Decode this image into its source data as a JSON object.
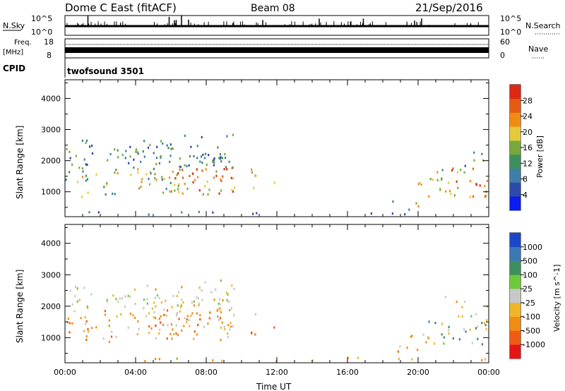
{
  "header": {
    "station": "Dome C East (fitACF)",
    "beam": "Beam 08",
    "date": "21/Sep/2016"
  },
  "top_panels": {
    "nsky_label": "N.Sky",
    "nsearch_label": "N.Search",
    "nsky_ticks": [
      "10^5",
      "10^0"
    ],
    "nsky_right_ticks": [
      "10^5",
      "10^0"
    ],
    "freq_label_lines": [
      "Freq.",
      "[MHz]"
    ],
    "freq_ticks": [
      "18",
      "8"
    ],
    "nave_label": "Nave",
    "nave_ticks": [
      "60",
      "0"
    ],
    "cpid_label": "CPID",
    "cpid_value": "twofsound 3501"
  },
  "colors": {
    "power_scale": [
      "#0a1cf0",
      "#2d4aa8",
      "#3f7ea6",
      "#3e8f5e",
      "#78a83c",
      "#e6c83c",
      "#f08c14",
      "#e65a14",
      "#dc2814"
    ],
    "velocity_scale": [
      "#e61414",
      "#f05a14",
      "#f08c14",
      "#f0b428",
      "#c8c8c8",
      "#6ec83c",
      "#3e8f5e",
      "#3c78b4",
      "#1e46c8"
    ]
  },
  "chart_data": [
    {
      "type": "heatmap",
      "name": "power",
      "ylabel": "Slant Range [km]",
      "yticks": [
        "1000",
        "2000",
        "3000",
        "4000"
      ],
      "ylim": [
        200,
        4600
      ],
      "colorbar_label": "Power [dB]",
      "colorbar_ticks": [
        "4",
        "8",
        "12",
        "16",
        "20",
        "24",
        "28"
      ],
      "colorbar_range": [
        0,
        32
      ]
    },
    {
      "type": "heatmap",
      "name": "velocity",
      "ylabel": "Slant Range [km]",
      "yticks": [
        "1000",
        "2000",
        "3000",
        "4000"
      ],
      "ylim": [
        200,
        4600
      ],
      "colorbar_label": "Velocity [m s^-1]",
      "colorbar_ticks": [
        "1000",
        "500",
        "100",
        "25",
        "-25",
        "-100",
        "-500",
        "-1000"
      ],
      "xlabel": "Time UT",
      "xticks": [
        "00:00",
        "04:00",
        "08:00",
        "12:00",
        "16:00",
        "20:00",
        "00:00"
      ],
      "xlim": [
        0,
        24
      ]
    }
  ]
}
